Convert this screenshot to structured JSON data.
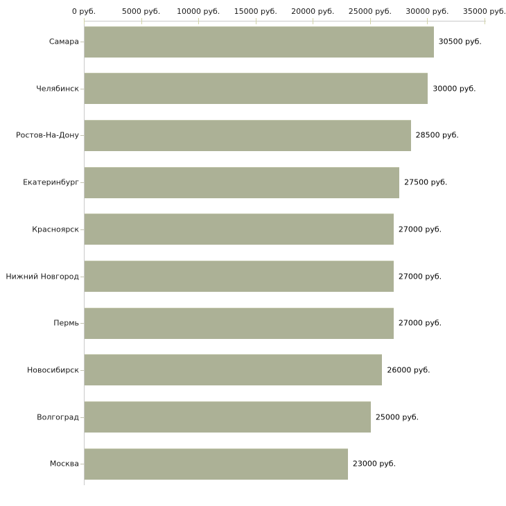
{
  "chart_data": {
    "type": "bar",
    "orientation": "horizontal",
    "title": "",
    "xlabel": "",
    "ylabel": "",
    "categories": [
      "Самара",
      "Челябинск",
      "Ростов-На-Дону",
      "Екатеринбург",
      "Красноярск",
      "Нижний Новгород",
      "Пермь",
      "Новосибирск",
      "Волгоград",
      "Москва"
    ],
    "values": [
      30500,
      30000,
      28500,
      27500,
      27000,
      27000,
      27000,
      26000,
      25000,
      23000
    ],
    "value_labels": [
      "30500 руб.",
      "30000 руб.",
      "28500 руб.",
      "27500 руб.",
      "27000 руб.",
      "27000 руб.",
      "27000 руб.",
      "26000 руб.",
      "25000 руб.",
      "23000 руб."
    ],
    "x_tick_values": [
      0,
      5000,
      10000,
      15000,
      20000,
      25000,
      30000,
      35000
    ],
    "x_tick_labels": [
      "0 руб.",
      "5000 руб.",
      "10000 руб.",
      "15000 руб.",
      "20000 руб.",
      "25000 руб.",
      "30000 руб.",
      "35000 руб."
    ],
    "xlim": [
      0,
      35000
    ],
    "grid": false,
    "legend": "none",
    "colors": {
      "bar": "#acb196",
      "axis": "#c9c9c9",
      "axis_tick": "#d2d4a8",
      "category_tick": "#c2c2ae",
      "text": "#1a1a1a",
      "background": "#ffffff"
    }
  }
}
